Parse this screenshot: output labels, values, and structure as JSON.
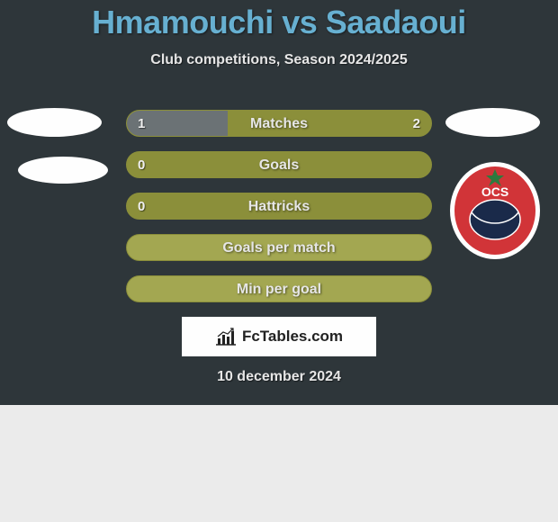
{
  "title": "Hmamouchi vs Saadaoui",
  "subtitle": "Club competitions, Season 2024/2025",
  "date": "10 december 2024",
  "logo_text": "FcTables.com",
  "colors": {
    "panel_bg": "#2e363a",
    "title": "#67b0d1",
    "text_light": "#e6e6e6",
    "bar_olive": "#8b8f3a",
    "bar_olive_light": "#a3a751",
    "bar_fill_gray": "#6b7275",
    "blob": "#fefefe",
    "card_bg": "#fefefe",
    "badge_red": "#d13438",
    "badge_navy": "#1a2a4a",
    "badge_green": "#2d7a3e"
  },
  "bars": [
    {
      "label": "Matches",
      "left_val": "1",
      "right_val": "2",
      "left_pct": 33,
      "right_pct": 67,
      "show_left": true,
      "show_right": true
    },
    {
      "label": "Goals",
      "left_val": "0",
      "right_val": "",
      "left_pct": 100,
      "right_pct": 0,
      "show_left": true,
      "show_right": false
    },
    {
      "label": "Hattricks",
      "left_val": "0",
      "right_val": "",
      "left_pct": 100,
      "right_pct": 0,
      "show_left": true,
      "show_right": false
    },
    {
      "label": "Goals per match",
      "left_val": "",
      "right_val": "",
      "left_pct": 0,
      "right_pct": 0,
      "show_left": false,
      "show_right": false
    },
    {
      "label": "Min per goal",
      "left_val": "",
      "right_val": "",
      "left_pct": 0,
      "right_pct": 0,
      "show_left": false,
      "show_right": false
    }
  ]
}
